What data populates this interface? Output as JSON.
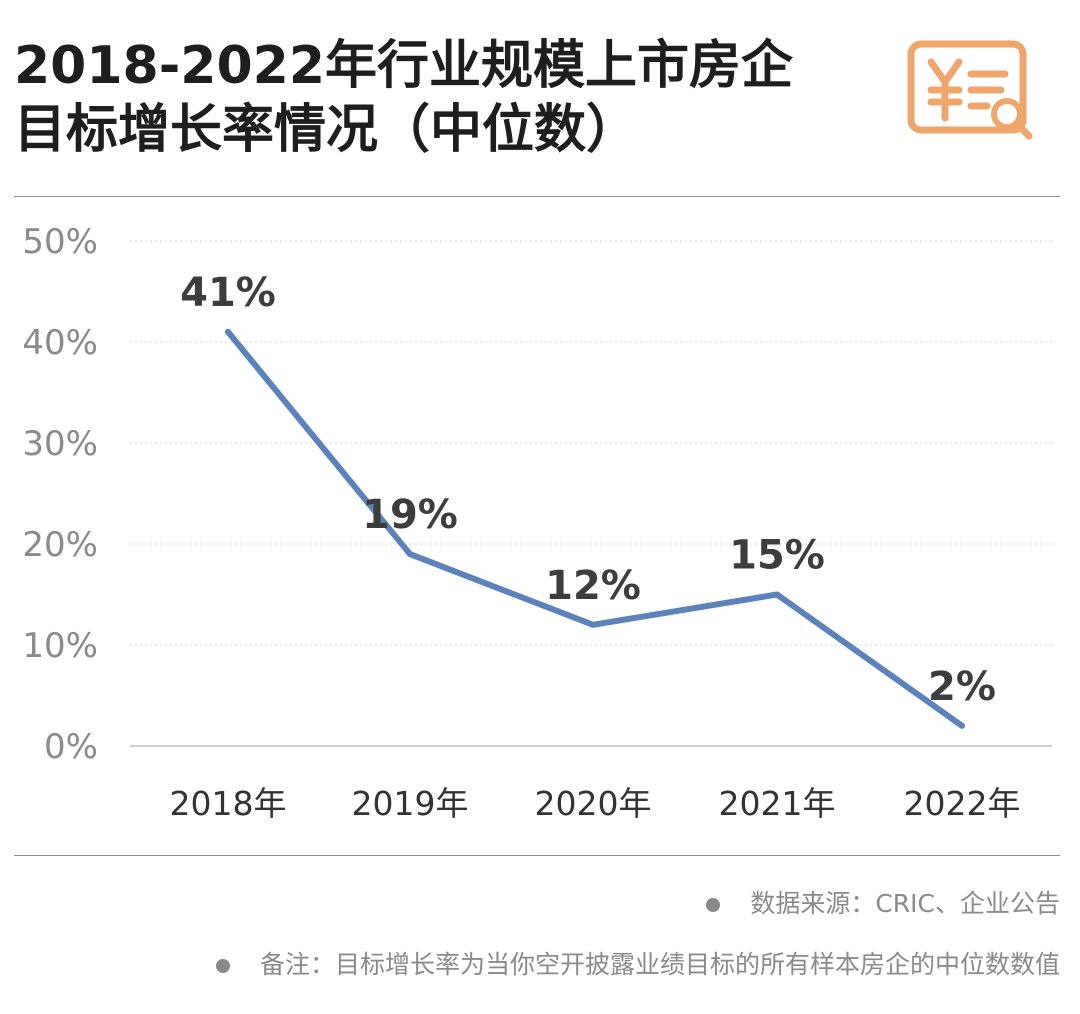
{
  "header": {
    "title_line1": "2018-2022年行业规模上市房企",
    "title_line2": "目标增长率情况（中位数）",
    "logo_icon": "yen-document-magnifier-icon"
  },
  "colors": {
    "line": "#5b82bd",
    "grid": "#d9d9d9",
    "axis_text": "#8a8a8a",
    "label_text": "#3d3d3d",
    "logo": "#f0a56b"
  },
  "chart_data": {
    "type": "line",
    "categories": [
      "2018年",
      "2019年",
      "2020年",
      "2021年",
      "2022年"
    ],
    "series": [
      {
        "values": [
          41,
          19,
          12,
          15,
          2
        ],
        "data_labels": [
          "41%",
          "19%",
          "12%",
          "15%",
          "2%"
        ]
      }
    ],
    "ylim": [
      0,
      50
    ],
    "yticks": [
      0,
      10,
      20,
      30,
      40,
      50
    ],
    "ytick_labels": [
      "0%",
      "10%",
      "20%",
      "30%",
      "40%",
      "50%"
    ],
    "grid": true,
    "title": "",
    "xlabel": "",
    "ylabel": ""
  },
  "footer": {
    "source": "数据来源：CRIC、企业公告",
    "note": "备注：目标增长率为当你空开披露业绩目标的所有样本房企的中位数数值"
  }
}
